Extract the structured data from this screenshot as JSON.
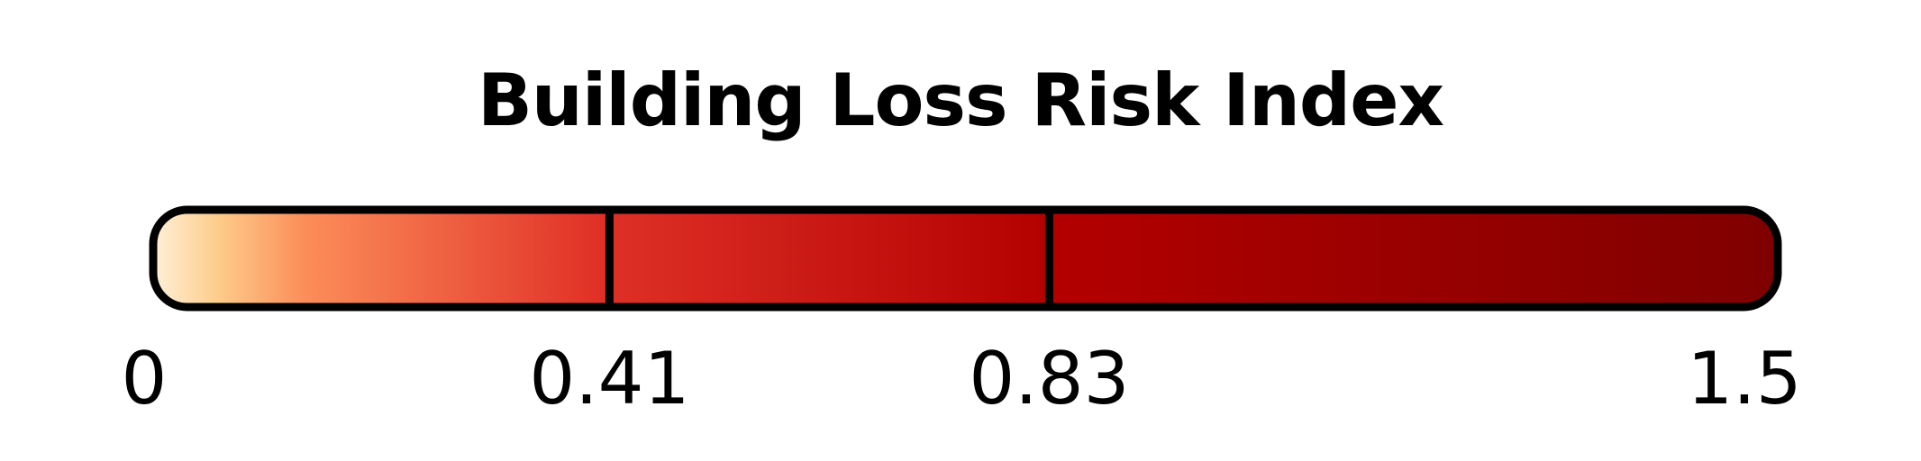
{
  "chart_data": {
    "type": "legend",
    "title": "Building Loss Risk Index",
    "domain": [
      0,
      1.5
    ],
    "ticks": [
      {
        "value": 0,
        "label": "0"
      },
      {
        "value": 0.41,
        "label": "0.41"
      },
      {
        "value": 0.83,
        "label": "0.83"
      },
      {
        "value": 1.5,
        "label": "1.5"
      }
    ],
    "breaks": [
      0.41,
      0.83
    ],
    "color_stops": [
      {
        "value": 0.0,
        "color": "#fef0d9"
      },
      {
        "value": 0.06,
        "color": "#fdcc8a"
      },
      {
        "value": 0.14,
        "color": "#fc8d59"
      },
      {
        "value": 0.41,
        "color": "#e03127"
      },
      {
        "value": 0.83,
        "color": "#b30000"
      },
      {
        "value": 1.5,
        "color": "#7f0000"
      }
    ],
    "outline_color": "#000000"
  }
}
